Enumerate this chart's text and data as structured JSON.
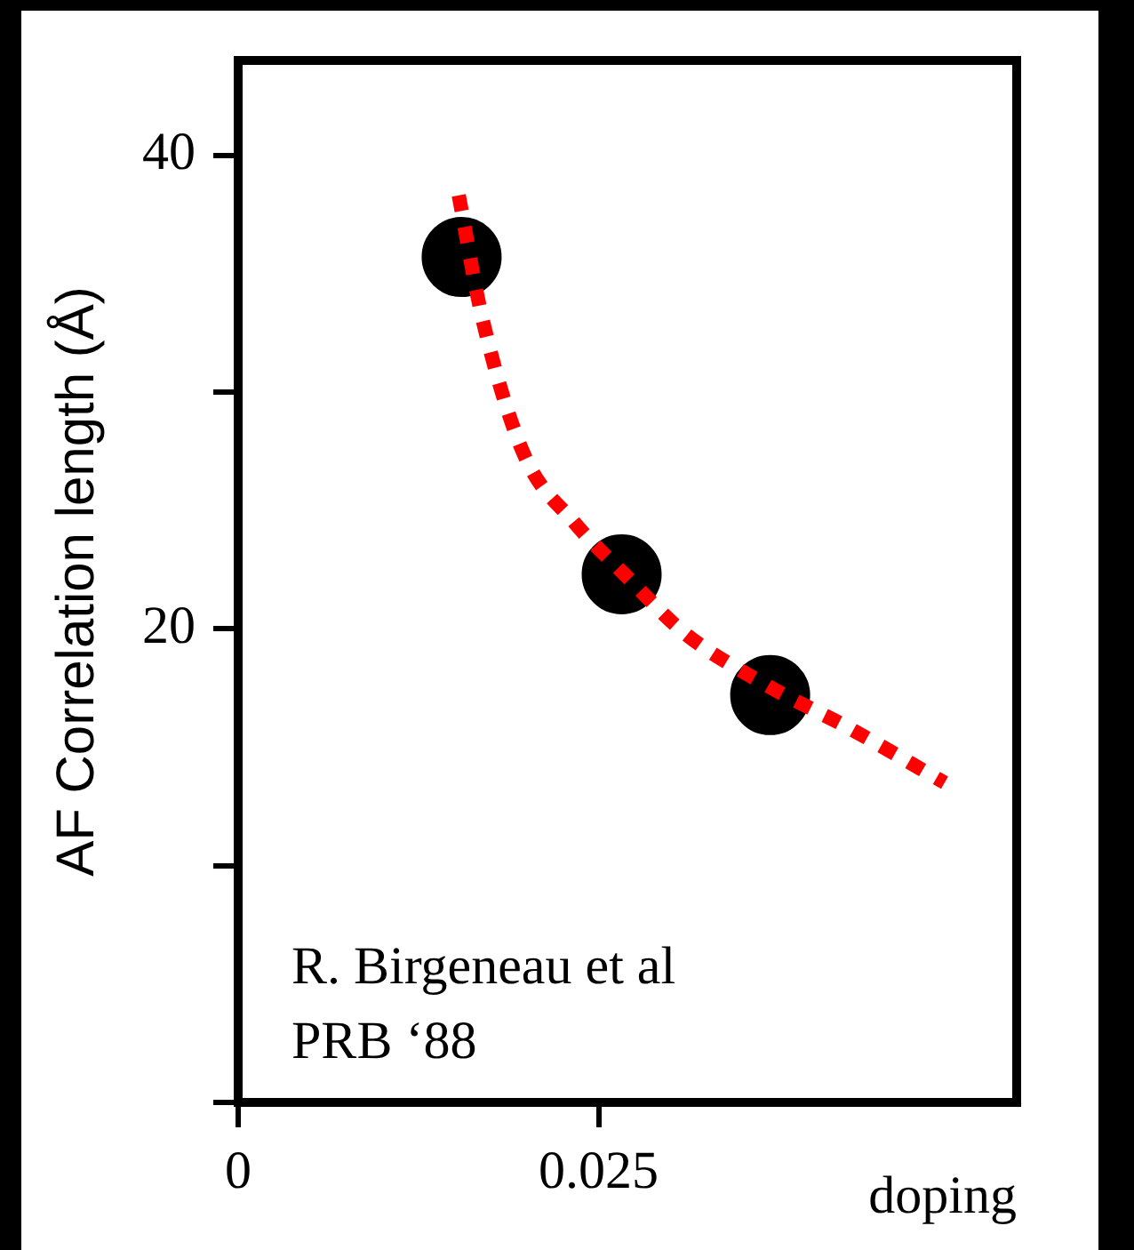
{
  "chart_data": {
    "type": "scatter",
    "ylabel": "AF Correlation length (Å)",
    "xlabel": "doping",
    "xlim": [
      0,
      0.054
    ],
    "xticks": [
      0,
      0.025
    ],
    "ylim": [
      0,
      44
    ],
    "yticks": [
      {
        "value": 0,
        "label": null
      },
      {
        "value": 10,
        "label": null
      },
      20,
      {
        "value": 30,
        "label": null
      },
      40
    ],
    "series": [
      {
        "type": "scatter",
        "color": "#000000",
        "x": [
          0.0155,
          0.0266,
          0.0369
        ],
        "values": [
          35.7,
          22.3,
          17.2
        ],
        "marker": "circle"
      },
      {
        "type": "line",
        "color": "#ff0000",
        "line_style": "dotted",
        "marker": "none",
        "x": [
          0.0153,
          0.0169,
          0.0198,
          0.0233,
          0.0268,
          0.031,
          0.0367,
          0.0424,
          0.049
        ],
        "values": [
          38.3,
          33.2,
          27.4,
          24.5,
          22.3,
          19.8,
          17.6,
          15.8,
          13.5
        ]
      }
    ],
    "annotations": [
      "R. Birgeneau et al PRB ‘88"
    ],
    "grid": false,
    "legend": false
  }
}
